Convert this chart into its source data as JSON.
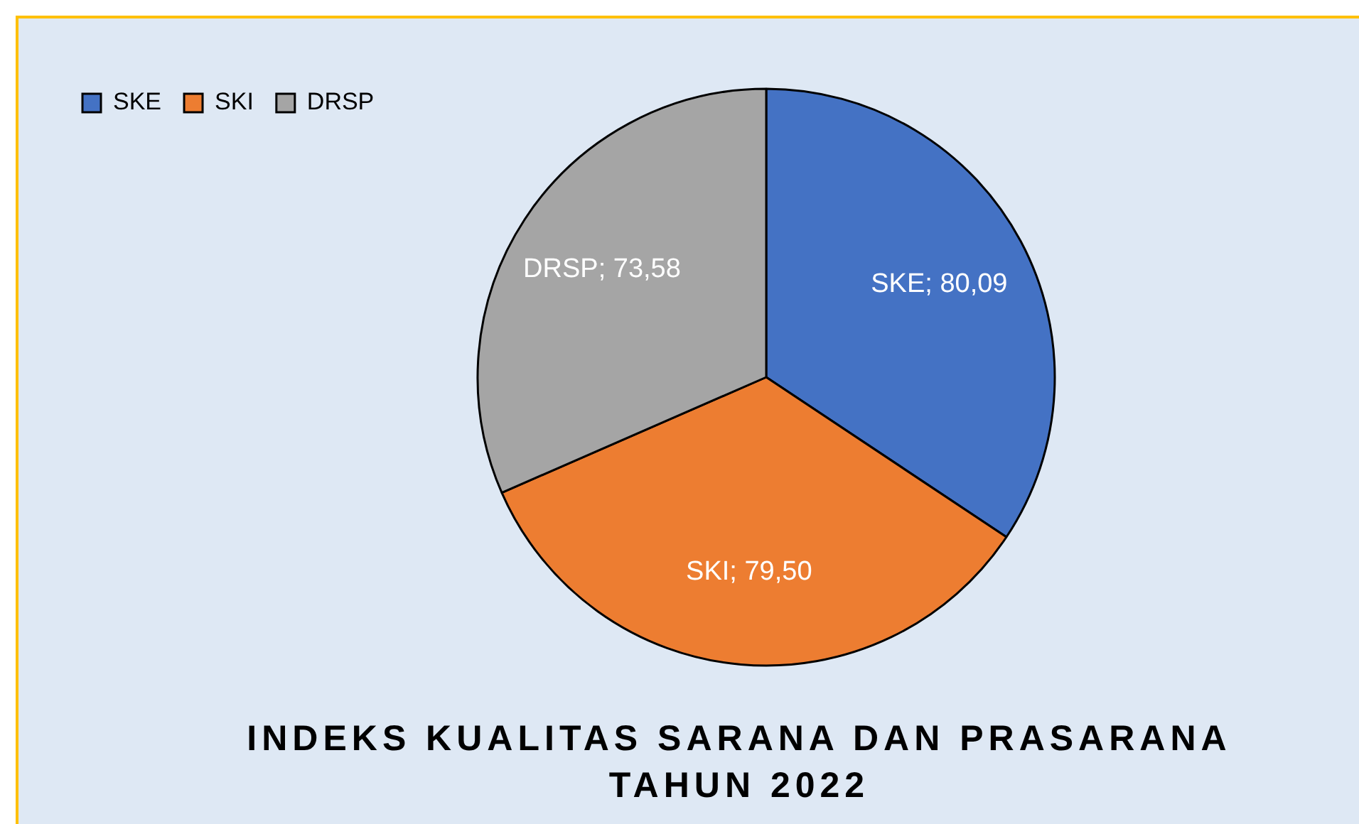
{
  "chart_data": {
    "type": "pie",
    "title": "INDEKS KUALITAS SARANA DAN PRASARANA TAHUN 2022",
    "categories": [
      "SKE",
      "SKI",
      "DRSP"
    ],
    "values": [
      80.09,
      79.5,
      73.58
    ],
    "colors": [
      "#4472c4",
      "#ed7d31",
      "#a5a5a5"
    ],
    "value_labels": [
      "SKE; 80,09",
      "SKI; 79,50",
      "DRSP; 73,58"
    ],
    "legend": "top left"
  }
}
